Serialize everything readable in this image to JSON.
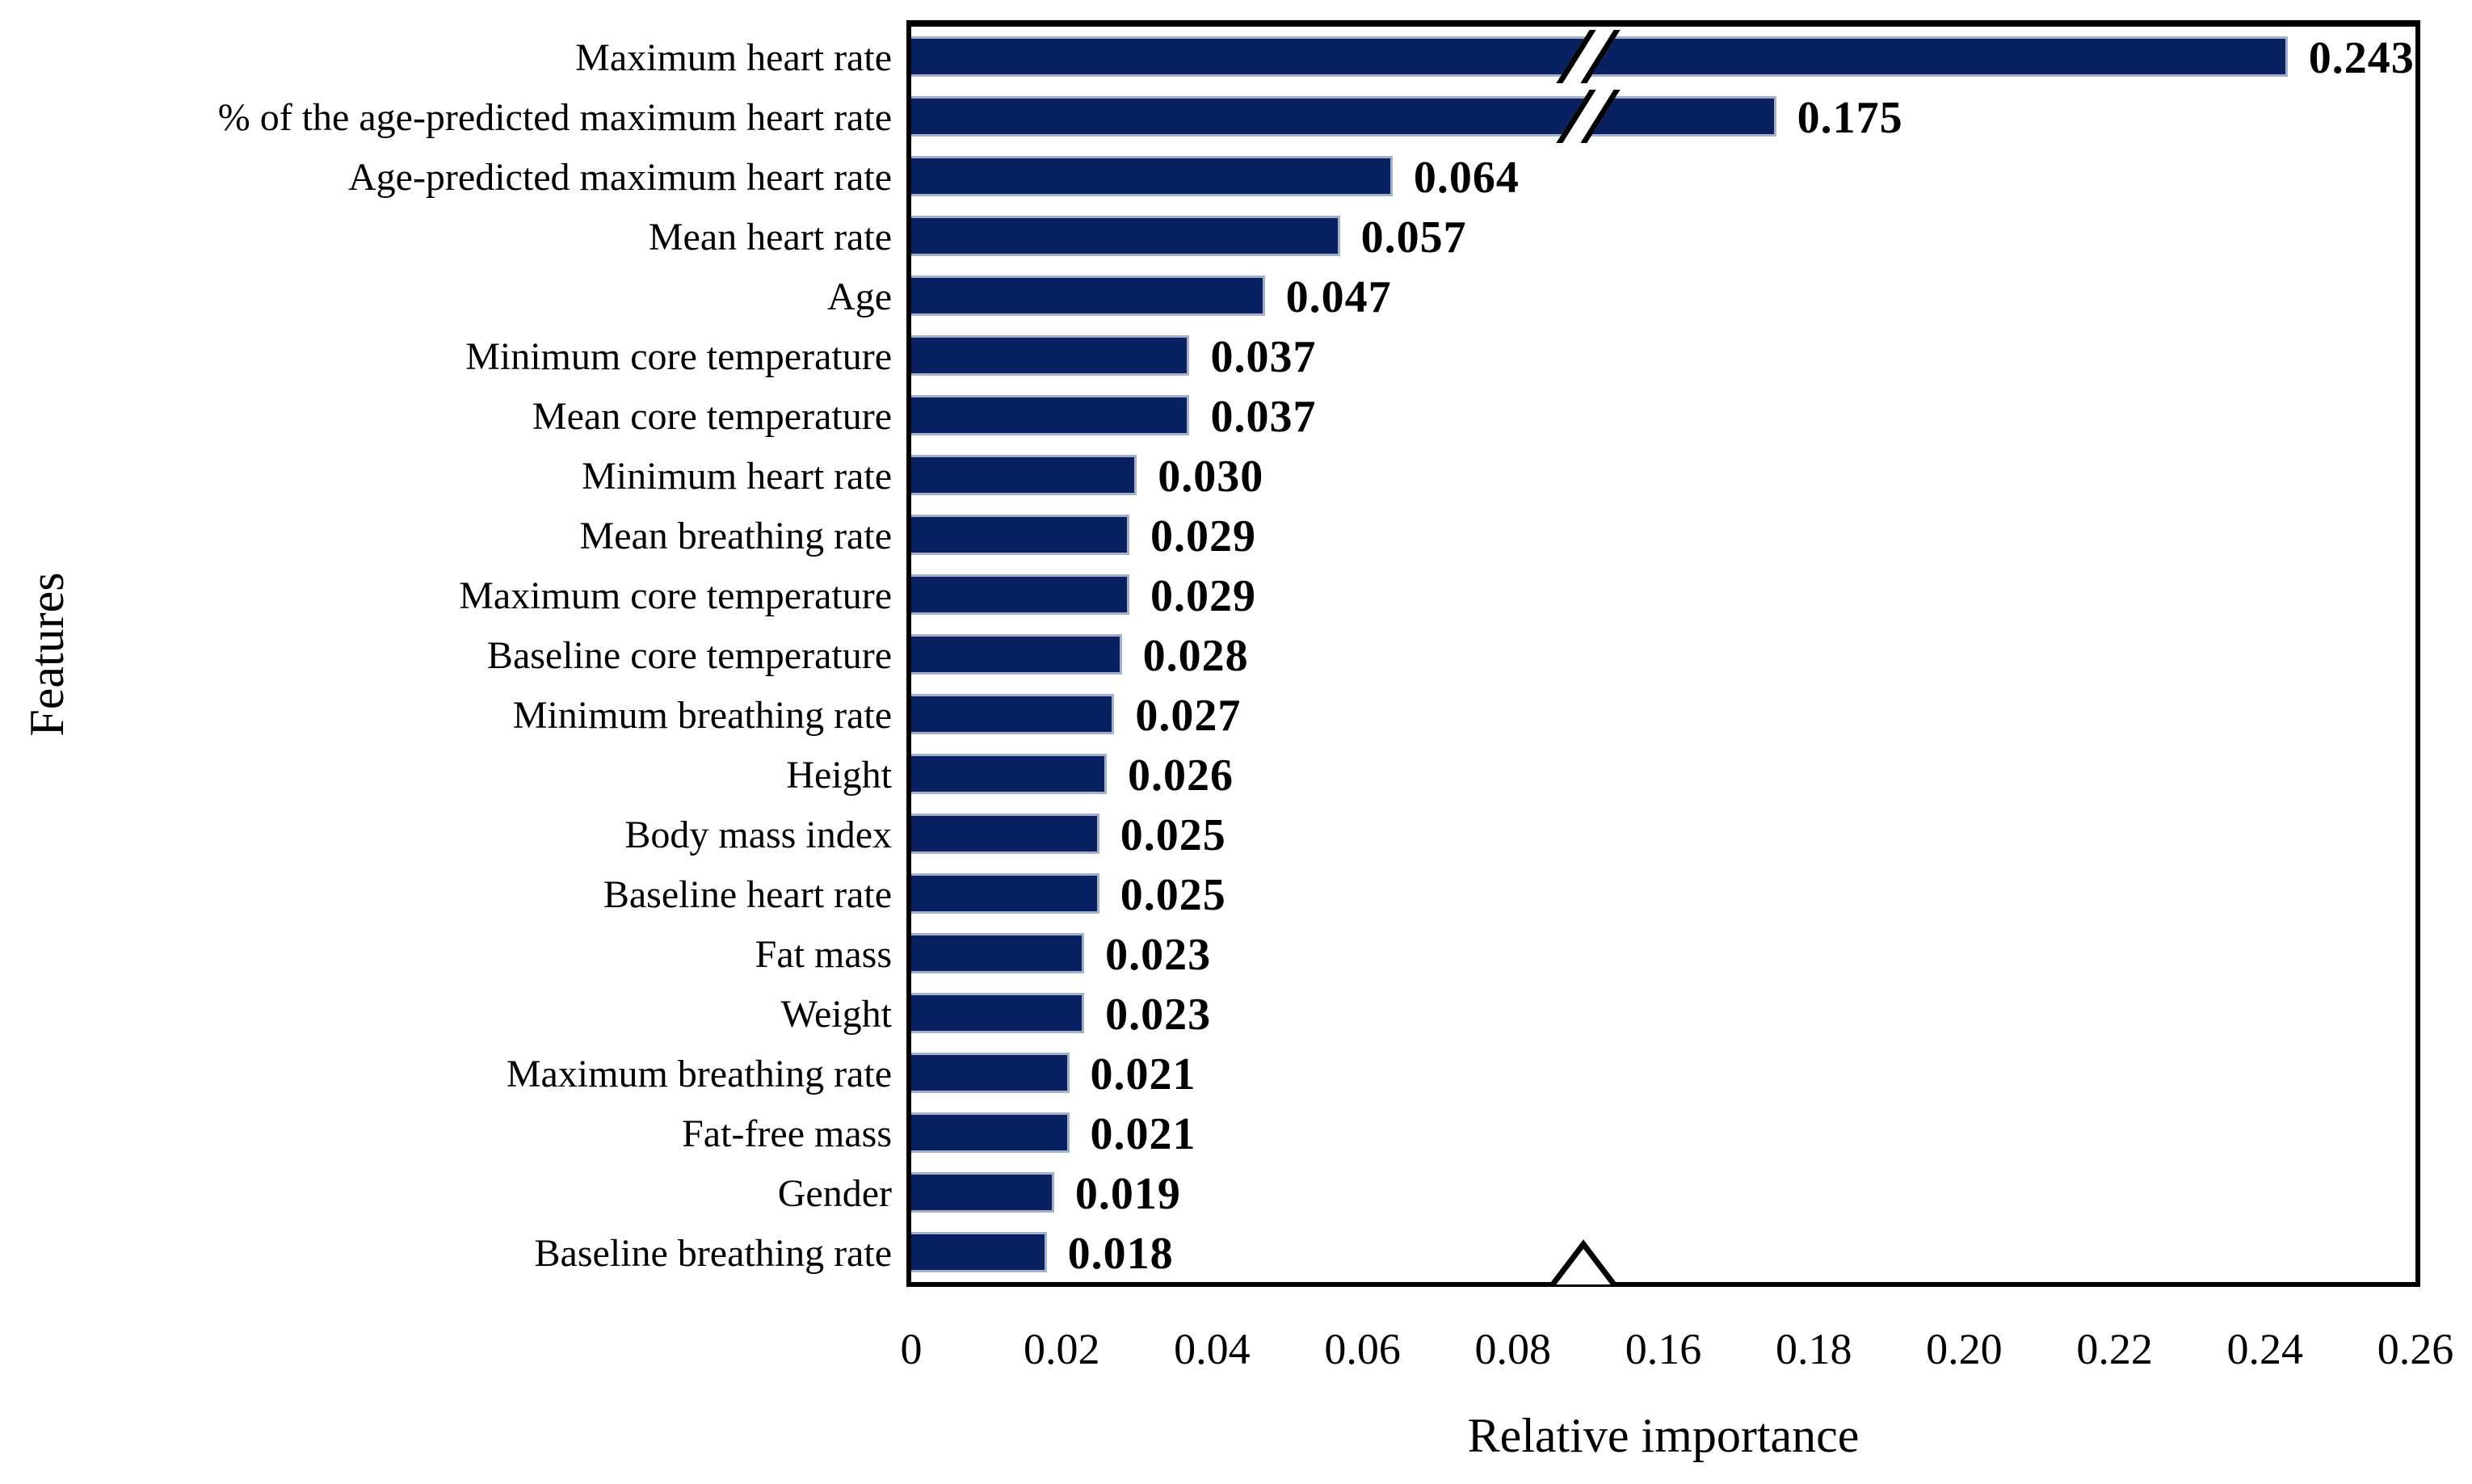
{
  "chart_data": {
    "type": "bar",
    "orientation": "horizontal",
    "title": "",
    "xlabel": "Relative importance",
    "ylabel": "Features",
    "categories": [
      "Maximum heart rate",
      "% of the age-predicted maximum heart rate",
      "Age-predicted maximum heart rate",
      "Mean heart rate",
      "Age",
      "Minimum core temperature",
      "Mean core temperature",
      "Minimum heart rate",
      "Mean breathing rate",
      "Maximum core temperature",
      "Baseline core temperature",
      "Minimum breathing rate",
      "Height",
      "Body mass index",
      "Baseline heart rate",
      "Fat mass",
      "Weight",
      "Maximum breathing rate",
      "Fat-free mass",
      "Gender",
      "Baseline breathing rate"
    ],
    "values": [
      0.243,
      0.175,
      0.064,
      0.057,
      0.047,
      0.037,
      0.037,
      0.03,
      0.029,
      0.029,
      0.028,
      0.027,
      0.026,
      0.025,
      0.025,
      0.023,
      0.023,
      0.021,
      0.021,
      0.019,
      0.018
    ],
    "value_labels": [
      "0.243",
      "0.175",
      "0.064",
      "0.057",
      "0.047",
      "0.037",
      "0.037",
      "0.030",
      "0.029",
      "0.029",
      "0.028",
      "0.027",
      "0.026",
      "0.025",
      "0.025",
      "0.023",
      "0.023",
      "0.021",
      "0.021",
      "0.019",
      "0.018"
    ],
    "x_ticks": [
      "0",
      "0.02",
      "0.04",
      "0.06",
      "0.08",
      "0.16",
      "0.18",
      "0.20",
      "0.22",
      "0.24",
      "0.26"
    ],
    "axis_break": {
      "between_ticks": [
        "0.08",
        "0.16"
      ],
      "omitted_value_span": 0.06,
      "break_marked_bar_indices": [
        0,
        1
      ]
    },
    "xlim": [
      0,
      0.26
    ],
    "grid": false,
    "legend": false,
    "bar_color": "#0a2161",
    "bar_edge_color": "#a3b0cb",
    "axis_color": "#000000",
    "text_color": "#000000"
  }
}
